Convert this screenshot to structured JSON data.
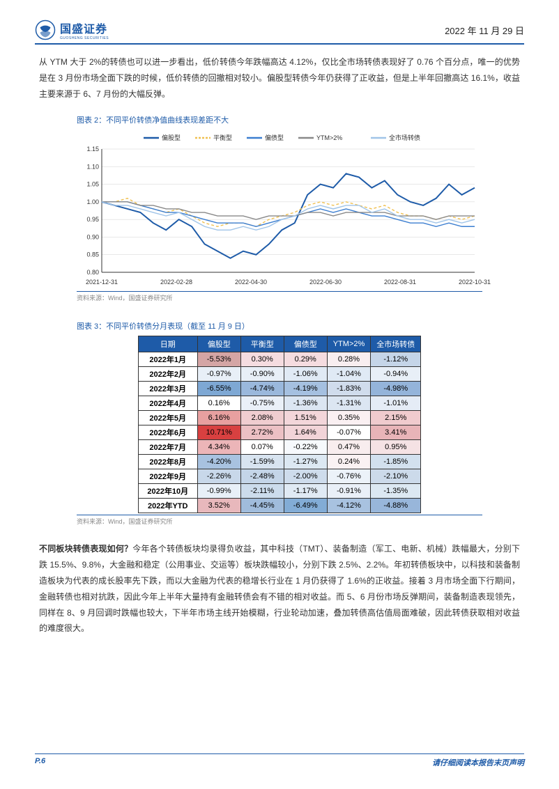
{
  "header": {
    "company_cn": "国盛证券",
    "company_en": "GUOSHENG SECURITIES",
    "date": "2022 年 11 月 29 日"
  },
  "paragraph1": "从 YTM 大于 2%的转债也可以进一步看出，低价转债今年跌幅高达 4.12%，仅比全市场转债表现好了 0.76 个百分点，唯一的优势是在 3 月份市场全面下跌的时候，低价转债的回撤相对较小。偏股型转债今年仍获得了正收益，但是上半年回撤高达 16.1%，收益主要来源于 6、7 月份的大幅反弹。",
  "figure2": {
    "caption": "图表 2：不同平价转债净值曲线表现差距不大",
    "source": "资料来源：Wind，国盛证券研究所",
    "legend": [
      "偏股型",
      "平衡型",
      "偏债型",
      "YTM>2%",
      "全市场转债"
    ],
    "legend_colors": [
      "#1e5ba8",
      "#f0c050",
      "#3a7dd0",
      "#888888",
      "#a0c4e8"
    ],
    "legend_styles": [
      "solid",
      "dashed",
      "solid",
      "solid",
      "solid"
    ],
    "x_labels": [
      "2021-12-31",
      "2022-02-28",
      "2022-04-30",
      "2022-06-30",
      "2022-08-31",
      "2022-10-31"
    ],
    "y_ticks": [
      0.8,
      0.85,
      0.9,
      0.95,
      1.0,
      1.05,
      1.1,
      1.15
    ],
    "y_min": 0.8,
    "y_max": 1.15,
    "background_color": "#ffffff",
    "grid_color": "#d0d0d0",
    "font_size": 9,
    "series": {
      "偏股型": [
        1.0,
        0.99,
        0.98,
        0.97,
        0.94,
        0.92,
        0.95,
        0.93,
        0.88,
        0.86,
        0.84,
        0.86,
        0.85,
        0.88,
        0.92,
        0.94,
        1.02,
        1.05,
        1.04,
        1.08,
        1.07,
        1.04,
        1.06,
        1.02,
        1.0,
        0.99,
        1.01,
        1.05,
        1.02,
        1.04
      ],
      "平衡型": [
        1.0,
        1.0,
        1.01,
        0.99,
        0.98,
        0.97,
        0.98,
        0.96,
        0.94,
        0.93,
        0.94,
        0.94,
        0.93,
        0.95,
        0.96,
        0.97,
        0.99,
        1.0,
        0.99,
        1.0,
        0.99,
        0.98,
        0.99,
        0.97,
        0.96,
        0.96,
        0.95,
        0.96,
        0.95,
        0.96
      ],
      "偏债型": [
        1.0,
        1.0,
        1.0,
        0.99,
        0.98,
        0.97,
        0.97,
        0.96,
        0.95,
        0.94,
        0.94,
        0.94,
        0.93,
        0.94,
        0.95,
        0.96,
        0.97,
        0.98,
        0.97,
        0.98,
        0.97,
        0.96,
        0.96,
        0.95,
        0.94,
        0.94,
        0.93,
        0.94,
        0.93,
        0.93
      ],
      "YTM>2%": [
        1.0,
        1.0,
        1.0,
        0.99,
        0.99,
        0.98,
        0.98,
        0.97,
        0.97,
        0.96,
        0.96,
        0.96,
        0.95,
        0.96,
        0.96,
        0.96,
        0.97,
        0.97,
        0.96,
        0.97,
        0.97,
        0.97,
        0.97,
        0.96,
        0.96,
        0.96,
        0.95,
        0.96,
        0.96,
        0.96
      ],
      "全市场转债": [
        1.0,
        0.99,
        0.99,
        0.98,
        0.97,
        0.96,
        0.97,
        0.95,
        0.93,
        0.92,
        0.92,
        0.93,
        0.92,
        0.93,
        0.95,
        0.96,
        0.98,
        0.99,
        0.98,
        0.99,
        0.99,
        0.97,
        0.98,
        0.96,
        0.95,
        0.95,
        0.94,
        0.95,
        0.94,
        0.95
      ]
    }
  },
  "figure3": {
    "caption": "图表 3：不同平价转债分月表现（截至 11 月 9 日）",
    "source": "资料来源：Wind，国盛证券研究所",
    "columns": [
      "日期",
      "偏股型",
      "平衡型",
      "偏债型",
      "YTM>2%",
      "全市场转债"
    ],
    "rows": [
      {
        "date": "2022年1月",
        "values": [
          "-5.53%",
          "0.30%",
          "0.29%",
          "0.28%",
          "-1.12%"
        ],
        "colors": [
          "#d4a5a5",
          "#f5dce0",
          "#f5dce0",
          "#f8eef0",
          "#c5d5e8"
        ]
      },
      {
        "date": "2022年2月",
        "values": [
          "-0.97%",
          "-0.90%",
          "-1.06%",
          "-1.04%",
          "-0.94%"
        ],
        "colors": [
          "#e8eff7",
          "#e8eff7",
          "#e0eaf5",
          "#e0eaf5",
          "#e8eff7"
        ]
      },
      {
        "date": "2022年3月",
        "values": [
          "-6.55%",
          "-4.74%",
          "-4.19%",
          "-1.83%",
          "-4.98%"
        ],
        "colors": [
          "#7ea8d4",
          "#9ab8dc",
          "#a5c0e0",
          "#d0dcec",
          "#94b4da"
        ]
      },
      {
        "date": "2022年4月",
        "values": [
          "0.16%",
          "-0.75%",
          "-1.36%",
          "-1.31%",
          "-1.01%"
        ],
        "colors": [
          "#ffffff",
          "#eaf0f8",
          "#dce6f2",
          "#dce6f2",
          "#e5ecf6"
        ]
      },
      {
        "date": "2022年5月",
        "values": [
          "6.16%",
          "2.08%",
          "1.51%",
          "0.35%",
          "2.15%"
        ],
        "colors": [
          "#e8a0a0",
          "#f0cdd0",
          "#f3d6da",
          "#faf0f2",
          "#f0cbce"
        ]
      },
      {
        "date": "2022年6月",
        "values": [
          "10.71%",
          "2.72%",
          "1.64%",
          "-0.07%",
          "3.41%"
        ],
        "colors": [
          "#d84040",
          "#ecc0c4",
          "#f2d4d8",
          "#ffffff",
          "#e8b4b8"
        ]
      },
      {
        "date": "2022年7月",
        "values": [
          "4.34%",
          "0.07%",
          "-0.22%",
          "0.47%",
          "0.95%"
        ],
        "colors": [
          "#ecb5b8",
          "#ffffff",
          "#f6f9fc",
          "#f8edee",
          "#f5e2e4"
        ]
      },
      {
        "date": "2022年8月",
        "values": [
          "-4.20%",
          "-1.59%",
          "-1.27%",
          "0.24%",
          "-1.85%"
        ],
        "colors": [
          "#a8c2e0",
          "#d8e4f0",
          "#dce8f2",
          "#faf2f3",
          "#d2e0ee"
        ]
      },
      {
        "date": "2022年9月",
        "values": [
          "-2.26%",
          "-2.48%",
          "-2.00%",
          "-0.76%",
          "-2.10%"
        ],
        "colors": [
          "#c8d8ea",
          "#c4d5e8",
          "#cedcec",
          "#ecf2f9",
          "#ccdaea"
        ]
      },
      {
        "date": "2022年10月",
        "values": [
          "-0.99%",
          "-2.11%",
          "-1.17%",
          "-0.91%",
          "-1.35%"
        ],
        "colors": [
          "#e8f0f8",
          "#ccdcec",
          "#e0eaf4",
          "#eaf0f8",
          "#dce8f2"
        ]
      },
      {
        "date": "2022年YTD",
        "values": [
          "3.52%",
          "-4.45%",
          "-6.49%",
          "-4.12%",
          "-4.88%"
        ],
        "colors": [
          "#e8b8bc",
          "#a0bcdc",
          "#82acd6",
          "#a8c2e0",
          "#98b6da"
        ]
      }
    ]
  },
  "paragraph2_bold": "不同板块转债表现如何？",
  "paragraph2": "今年各个转债板块均录得负收益，其中科技（TMT）、装备制造（军工、电新、机械）跌幅最大，分别下跌 15.5%、9.8%，大金融和稳定（公用事业、交运等）板块跌幅较小，分别下跌 2.5%、2.2%。年初转债板块中，以科技和装备制造板块为代表的成长股率先下跌，而以大金融为代表的稳增长行业在 1 月仍获得了 1.6%的正收益。接着 3 月市场全面下行期间，金融转债也相对抗跌，因此今年上半年大量持有金融转债会有不错的相对收益。而 5、6 月份市场反弹期间，装备制造表现领先，同样在 8、9 月回调时跌幅也较大，下半年市场主线开始模糊，行业轮动加速，叠加转债高估值局面难破，因此转债获取相对收益的难度很大。",
  "footer": {
    "page": "P.6",
    "text": "请仔细阅读本报告末页声明"
  }
}
